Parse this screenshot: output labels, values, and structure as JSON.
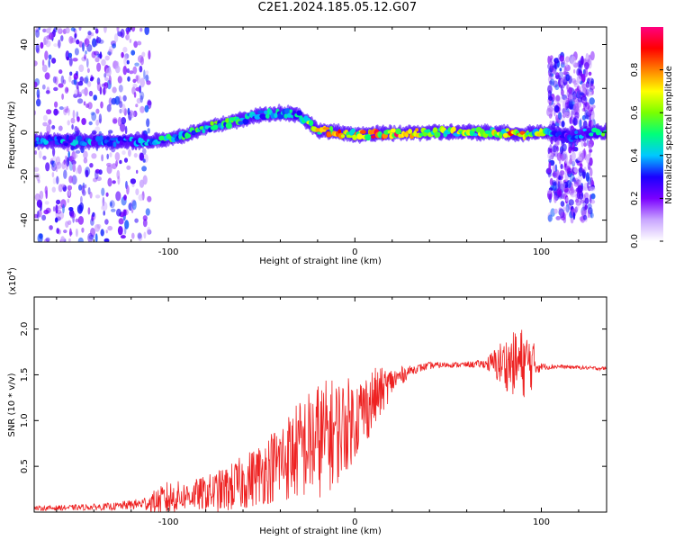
{
  "figure": {
    "title": "C2E1.2024.185.05.12.G07"
  },
  "chart_data": [
    {
      "type": "heatmap",
      "xlabel": "Height of straight line (km)",
      "ylabel": "Frequency (Hz)",
      "xlim": [
        -172,
        135
      ],
      "ylim": [
        -50,
        48
      ],
      "x_ticks": [
        "-100",
        "0",
        "100"
      ],
      "x_tick_values": [
        -100,
        0,
        100
      ],
      "y_ticks": [
        "-40",
        "-20",
        "0",
        "20",
        "40"
      ],
      "y_tick_values": [
        -40,
        -20,
        0,
        20,
        40
      ],
      "colorbar": {
        "label": "Normalized spectral amplitude",
        "range": [
          0,
          1
        ],
        "ticks": [
          "0.0",
          "0.2",
          "0.4",
          "0.6",
          "0.8"
        ],
        "tick_values": [
          0,
          0.2,
          0.4,
          0.6,
          0.8
        ],
        "colormap": [
          "#ffffff",
          "#c9a6ff",
          "#7a00ff",
          "#1a00ff",
          "#00c8ff",
          "#00ff7a",
          "#7aff00",
          "#ffff00",
          "#ff8000",
          "#ff0000",
          "#ff0080"
        ]
      },
      "ridge": {
        "x": [
          -172,
          -150,
          -130,
          -110,
          -100,
          -90,
          -80,
          -70,
          -60,
          -50,
          -40,
          -30,
          -20,
          -10,
          0,
          20,
          40,
          60,
          80,
          90,
          95,
          100,
          105,
          115,
          125,
          135
        ],
        "center_hz": [
          -4,
          -4,
          -4,
          -4,
          -3,
          -1,
          2,
          4,
          6,
          8,
          9,
          8,
          1,
          0,
          -1,
          -0.5,
          0,
          0,
          0,
          -1,
          0,
          0,
          0,
          -2,
          0,
          0
        ],
        "peak_amplitude": [
          0.35,
          0.4,
          0.35,
          0.4,
          0.5,
          0.55,
          0.55,
          0.55,
          0.55,
          0.5,
          0.45,
          0.45,
          0.85,
          0.85,
          0.75,
          0.9,
          0.6,
          0.65,
          0.75,
          0.85,
          0.5,
          0.85,
          0.4,
          0.3,
          0.4,
          0.55
        ]
      },
      "scatter_regions": [
        {
          "x": [
            -172,
            -110
          ],
          "freq_hz": [
            -50,
            48
          ],
          "amplitude": 0.3
        },
        {
          "x": [
            104,
            128
          ],
          "freq_hz": [
            -40,
            35
          ],
          "amplitude": 0.3
        }
      ]
    },
    {
      "type": "line",
      "color": "#ee2222",
      "xlabel": "Height of straight line (km)",
      "ylabel": "SNR (10 * v/v)",
      "multiplier_label": "(x10",
      "multiplier_exp": "4",
      "multiplier_close": ")",
      "xlim": [
        -172,
        135
      ],
      "ylim": [
        0,
        23500
      ],
      "x_ticks": [
        "-100",
        "0",
        "100"
      ],
      "x_tick_values": [
        -100,
        0,
        100
      ],
      "y_ticks": [
        "0.5",
        "1.0",
        "1.5",
        "2.0"
      ],
      "y_tick_values": [
        5000,
        10000,
        15000,
        20000
      ],
      "envelope": {
        "x": [
          -172,
          -150,
          -130,
          -115,
          -105,
          -100,
          -90,
          -80,
          -70,
          -60,
          -50,
          -40,
          -30,
          -20,
          -10,
          0,
          10,
          20,
          30,
          40,
          50,
          60,
          70,
          78,
          85,
          90,
          95,
          98,
          100,
          110,
          120,
          130,
          135
        ],
        "base": [
          400,
          500,
          600,
          900,
          1200,
          1500,
          1800,
          2000,
          2400,
          3200,
          4300,
          5500,
          6800,
          7800,
          8800,
          10200,
          12300,
          14300,
          15500,
          16000,
          16100,
          16100,
          16200,
          16200,
          16200,
          16300,
          16300,
          16000,
          15900,
          15900,
          15800,
          15700,
          15700
        ],
        "noise_amplitude": [
          250,
          300,
          400,
          600,
          1500,
          2000,
          1500,
          2000,
          2500,
          3000,
          3500,
          4500,
          5500,
          6500,
          6000,
          4500,
          3500,
          1500,
          500,
          400,
          300,
          300,
          500,
          2500,
          3500,
          4000,
          3000,
          1000,
          400,
          200,
          200,
          200,
          200
        ]
      }
    }
  ]
}
